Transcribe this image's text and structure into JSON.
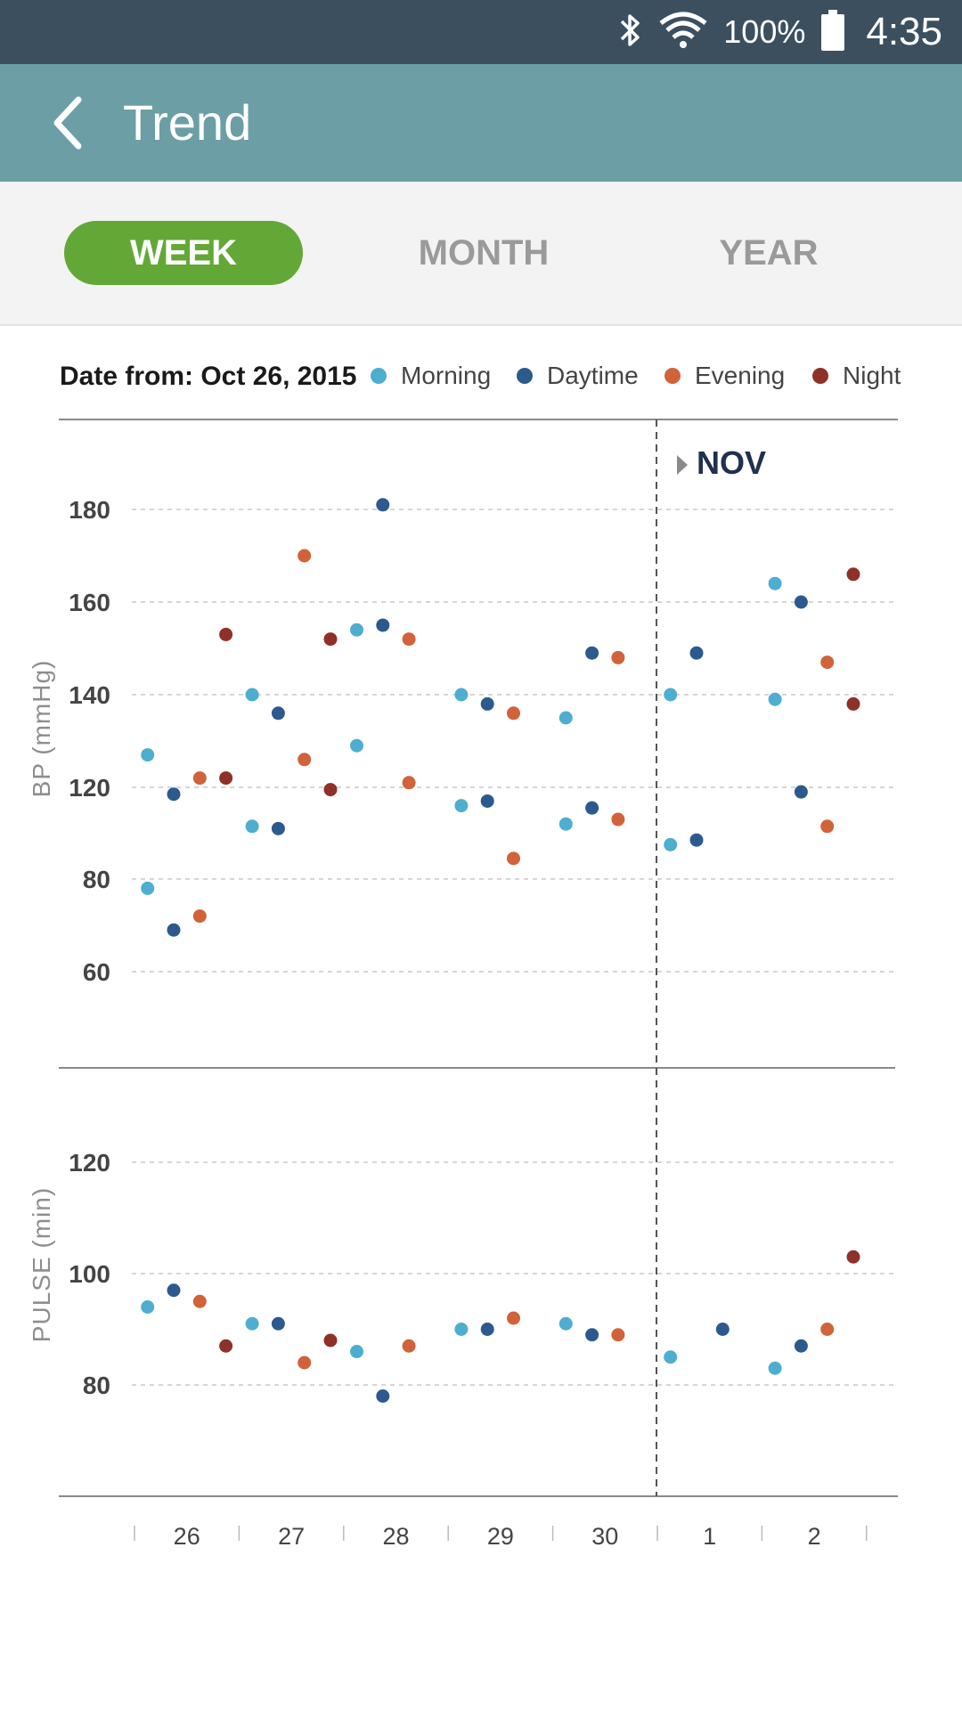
{
  "status_bar": {
    "battery_percent": "100%",
    "time": "4:35",
    "icons": [
      "bluetooth-icon",
      "wifi-icon",
      "battery-icon"
    ]
  },
  "app_bar": {
    "title": "Trend",
    "back_icon": "chevron-left-icon"
  },
  "tabs": [
    {
      "label": "WEEK",
      "active": true
    },
    {
      "label": "MONTH",
      "active": false
    },
    {
      "label": "YEAR",
      "active": false
    }
  ],
  "date_from": "Date from: Oct 26, 2015",
  "colors": {
    "accent": "#63a837",
    "appbar": "#6c9ea5",
    "statusbar": "#3b4f5f",
    "morning": "#4eaecf",
    "daytime": "#2c5a8e",
    "evening": "#d0633a",
    "night": "#8e3128"
  },
  "legend": [
    {
      "name": "Morning",
      "color": "#4eaecf"
    },
    {
      "name": "Daytime",
      "color": "#2c5a8e"
    },
    {
      "name": "Evening",
      "color": "#d0633a"
    },
    {
      "name": "Night",
      "color": "#8e3128"
    }
  ],
  "chart_data": [
    {
      "type": "scatter",
      "ylabel": "BP  (mmHg)",
      "y_ticks": [
        60,
        80,
        120,
        140,
        160,
        180
      ],
      "x_labels": [
        "26",
        "27",
        "28",
        "29",
        "30",
        "1",
        "2"
      ],
      "month_marker": {
        "label": "NOV",
        "before_index": 5
      },
      "grid": true,
      "series": [
        {
          "name": "Morning",
          "color": "#4eaecf",
          "points": [
            {
              "day": 0,
              "slot": 0,
              "y": 78
            },
            {
              "day": 0,
              "slot": 0,
              "y": 127
            },
            {
              "day": 1,
              "slot": 0,
              "y": 140
            },
            {
              "day": 1,
              "slot": 0,
              "y": 103
            },
            {
              "day": 2,
              "slot": 0,
              "y": 129
            },
            {
              "day": 2,
              "slot": 0,
              "y": 154
            },
            {
              "day": 3,
              "slot": 0,
              "y": 140
            },
            {
              "day": 3,
              "slot": 0,
              "y": 112
            },
            {
              "day": 4,
              "slot": 0,
              "y": 135
            },
            {
              "day": 4,
              "slot": 0,
              "y": 104
            },
            {
              "day": 5,
              "slot": 0,
              "y": 140
            },
            {
              "day": 5,
              "slot": 0,
              "y": 95
            },
            {
              "day": 6,
              "slot": 0,
              "y": 164
            },
            {
              "day": 6,
              "slot": 0,
              "y": 139
            }
          ]
        },
        {
          "name": "Daytime",
          "color": "#2c5a8e",
          "points": [
            {
              "day": 0,
              "slot": 1,
              "y": 117
            },
            {
              "day": 0,
              "slot": 1,
              "y": 69
            },
            {
              "day": 1,
              "slot": 1,
              "y": 136
            },
            {
              "day": 1,
              "slot": 1,
              "y": 102
            },
            {
              "day": 2,
              "slot": 1,
              "y": 181
            },
            {
              "day": 2,
              "slot": 1,
              "y": 155
            },
            {
              "day": 3,
              "slot": 1,
              "y": 138
            },
            {
              "day": 3,
              "slot": 1,
              "y": 114
            },
            {
              "day": 4,
              "slot": 1,
              "y": 149
            },
            {
              "day": 4,
              "slot": 1,
              "y": 111
            },
            {
              "day": 5,
              "slot": 1,
              "y": 149
            },
            {
              "day": 5,
              "slot": 1,
              "y": 97
            },
            {
              "day": 6,
              "slot": 1,
              "y": 160
            },
            {
              "day": 6,
              "slot": 1,
              "y": 118
            }
          ]
        },
        {
          "name": "Evening",
          "color": "#d0633a",
          "points": [
            {
              "day": 0,
              "slot": 2,
              "y": 122
            },
            {
              "day": 0,
              "slot": 2,
              "y": 72
            },
            {
              "day": 1,
              "slot": 2,
              "y": 170
            },
            {
              "day": 1,
              "slot": 2,
              "y": 126
            },
            {
              "day": 2,
              "slot": 2,
              "y": 152
            },
            {
              "day": 2,
              "slot": 2,
              "y": 121
            },
            {
              "day": 3,
              "slot": 2,
              "y": 136
            },
            {
              "day": 3,
              "slot": 2,
              "y": 89
            },
            {
              "day": 4,
              "slot": 2,
              "y": 148
            },
            {
              "day": 4,
              "slot": 2,
              "y": 106
            },
            {
              "day": 6,
              "slot": 2,
              "y": 147
            },
            {
              "day": 6,
              "slot": 2,
              "y": 103
            }
          ]
        },
        {
          "name": "Night",
          "color": "#8e3128",
          "points": [
            {
              "day": 0,
              "slot": 3,
              "y": 153
            },
            {
              "day": 0,
              "slot": 3,
              "y": 122
            },
            {
              "day": 1,
              "slot": 3,
              "y": 152
            },
            {
              "day": 1,
              "slot": 3,
              "y": 119
            },
            {
              "day": 6,
              "slot": 3,
              "y": 166
            },
            {
              "day": 6,
              "slot": 3,
              "y": 138
            }
          ]
        }
      ]
    },
    {
      "type": "scatter",
      "ylabel": "PULSE  (min)",
      "y_ticks": [
        80,
        100,
        120
      ],
      "x_labels": [
        "26",
        "27",
        "28",
        "29",
        "30",
        "1",
        "2"
      ],
      "grid": true,
      "series": [
        {
          "name": "Morning",
          "color": "#4eaecf",
          "points": [
            {
              "day": 0,
              "slot": 0,
              "y": 94
            },
            {
              "day": 1,
              "slot": 0,
              "y": 91
            },
            {
              "day": 2,
              "slot": 0,
              "y": 86
            },
            {
              "day": 3,
              "slot": 0,
              "y": 90
            },
            {
              "day": 4,
              "slot": 0,
              "y": 91
            },
            {
              "day": 5,
              "slot": 0,
              "y": 85
            },
            {
              "day": 6,
              "slot": 0,
              "y": 83
            }
          ]
        },
        {
          "name": "Daytime",
          "color": "#2c5a8e",
          "points": [
            {
              "day": 0,
              "slot": 1,
              "y": 97
            },
            {
              "day": 1,
              "slot": 1,
              "y": 91
            },
            {
              "day": 2,
              "slot": 1,
              "y": 78
            },
            {
              "day": 3,
              "slot": 1,
              "y": 90
            },
            {
              "day": 4,
              "slot": 1,
              "y": 89
            },
            {
              "day": 5,
              "slot": 2,
              "y": 90
            },
            {
              "day": 6,
              "slot": 1,
              "y": 87
            }
          ]
        },
        {
          "name": "Evening",
          "color": "#d0633a",
          "points": [
            {
              "day": 0,
              "slot": 2,
              "y": 95
            },
            {
              "day": 1,
              "slot": 2,
              "y": 84
            },
            {
              "day": 2,
              "slot": 2,
              "y": 87
            },
            {
              "day": 3,
              "slot": 2,
              "y": 92
            },
            {
              "day": 4,
              "slot": 2,
              "y": 89
            },
            {
              "day": 6,
              "slot": 2,
              "y": 90
            }
          ]
        },
        {
          "name": "Night",
          "color": "#8e3128",
          "points": [
            {
              "day": 0,
              "slot": 3,
              "y": 87
            },
            {
              "day": 1,
              "slot": 3,
              "y": 88
            },
            {
              "day": 6,
              "slot": 3,
              "y": 103
            }
          ]
        }
      ]
    }
  ]
}
